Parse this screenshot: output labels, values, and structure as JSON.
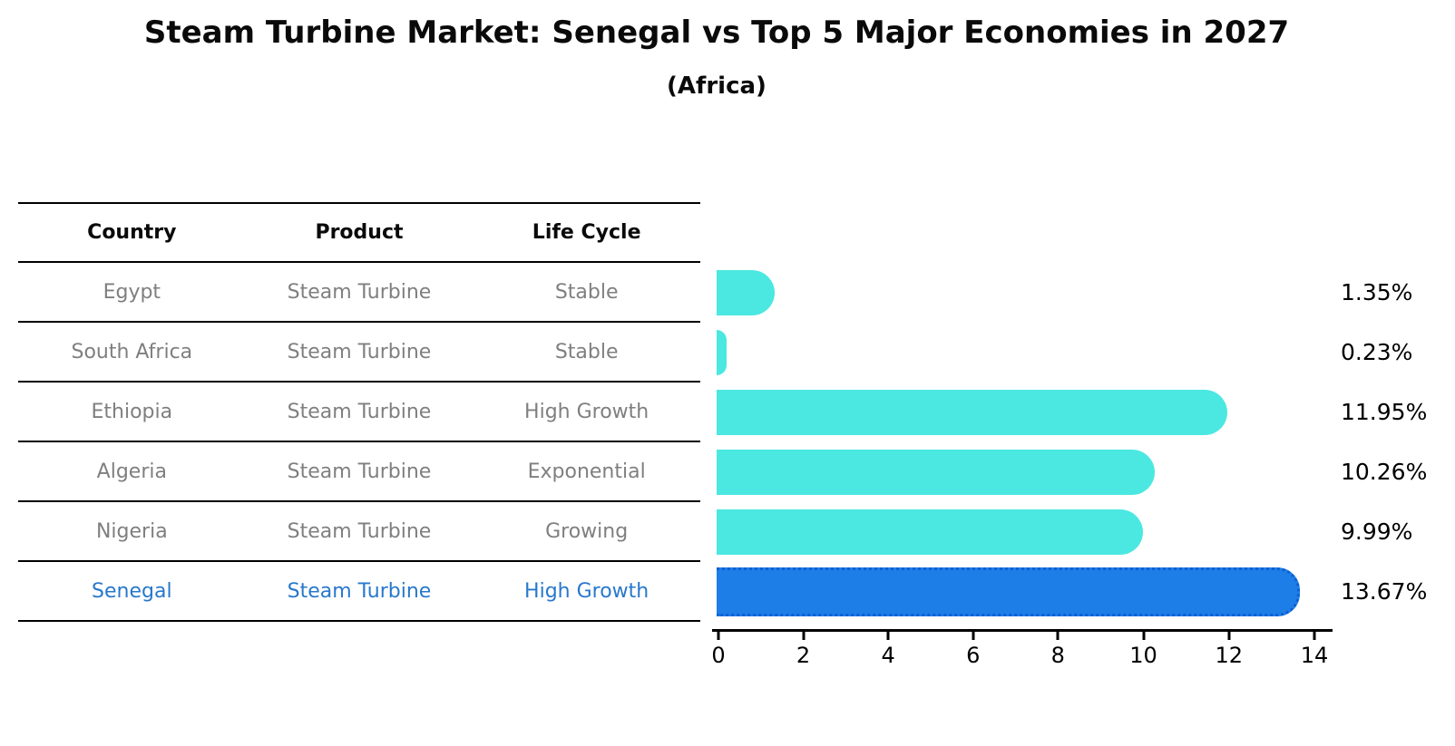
{
  "title": "Steam Turbine Market: Senegal vs Top 5 Major Economies in 2027",
  "subtitle": "(Africa)",
  "table": {
    "headers": {
      "country": "Country",
      "product": "Product",
      "life_cycle": "Life Cycle"
    },
    "rows": [
      {
        "country": "Egypt",
        "product": "Steam Turbine",
        "life_cycle": "Stable",
        "highlight": false
      },
      {
        "country": "South Africa",
        "product": "Steam Turbine",
        "life_cycle": "Stable",
        "highlight": false
      },
      {
        "country": "Ethiopia",
        "product": "Steam Turbine",
        "life_cycle": "High Growth",
        "highlight": false
      },
      {
        "country": "Algeria",
        "product": "Steam Turbine",
        "life_cycle": "Exponential",
        "highlight": false
      },
      {
        "country": "Nigeria",
        "product": "Steam Turbine",
        "life_cycle": "Growing",
        "highlight": false
      },
      {
        "country": "Senegal",
        "product": "Steam Turbine",
        "life_cycle": "High Growth",
        "highlight": true
      }
    ]
  },
  "chart_data": {
    "type": "bar",
    "orientation": "horizontal",
    "title": "Steam Turbine Market: Senegal vs Top 5 Major Economies in 2027",
    "subtitle": "(Africa)",
    "categories": [
      "Egypt",
      "South Africa",
      "Ethiopia",
      "Algeria",
      "Nigeria",
      "Senegal"
    ],
    "values": [
      1.35,
      0.23,
      11.95,
      10.26,
      9.99,
      13.67
    ],
    "value_labels": [
      "1.35%",
      "0.23%",
      "11.95%",
      "10.26%",
      "9.99%",
      "13.67%"
    ],
    "unit": "%",
    "xlim": [
      0,
      14
    ],
    "x_ticks": [
      "0",
      "2",
      "4",
      "6",
      "8",
      "10",
      "12",
      "14"
    ],
    "xlabel": "",
    "ylabel": "",
    "grid": false,
    "legend": "none",
    "highlight_index": 5,
    "colors": {
      "bar_default": "#4ae8e1",
      "bar_highlight": "#1e7ee8",
      "bar_highlight_border": "#0d5fd2",
      "highlight_row_text": "#2878cc",
      "table_row_text": "#7f7f7f",
      "text": "#000000"
    }
  }
}
